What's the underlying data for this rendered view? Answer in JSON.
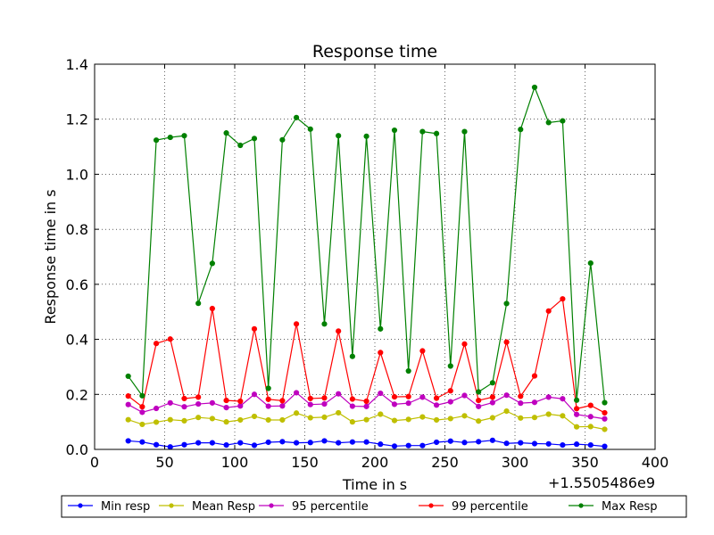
{
  "chart_data": {
    "type": "line",
    "title": "Response time",
    "xlabel": "Time in s",
    "ylabel": "Response time in s",
    "x_offset_label": "+1.5505486e9",
    "xlim": [
      0,
      400
    ],
    "ylim": [
      0,
      1.4
    ],
    "x_ticks": [
      "0",
      "50",
      "100",
      "150",
      "200",
      "250",
      "300",
      "350",
      "400"
    ],
    "y_ticks": [
      "0.0",
      "0.2",
      "0.4",
      "0.6",
      "0.8",
      "1.0",
      "1.2",
      "1.4"
    ],
    "x_tick_values": [
      0,
      50,
      100,
      150,
      200,
      250,
      300,
      350,
      400
    ],
    "y_tick_values": [
      0,
      0.2,
      0.4,
      0.6,
      0.8,
      1.0,
      1.2,
      1.4
    ],
    "grid": true,
    "legend_position": "bottom-outside",
    "x": [
      24,
      34,
      44,
      54,
      64,
      74,
      84,
      94,
      104,
      114,
      124,
      134,
      144,
      154,
      164,
      174,
      184,
      194,
      204,
      214,
      224,
      234,
      244,
      254,
      264,
      274,
      284,
      294,
      304,
      314,
      324,
      334,
      344,
      354,
      364
    ],
    "series": [
      {
        "name": "Min resp",
        "color": "#0000ff",
        "values": [
          0.031,
          0.027,
          0.017,
          0.009,
          0.017,
          0.024,
          0.024,
          0.016,
          0.024,
          0.015,
          0.026,
          0.028,
          0.024,
          0.025,
          0.031,
          0.024,
          0.027,
          0.027,
          0.019,
          0.012,
          0.014,
          0.014,
          0.026,
          0.03,
          0.025,
          0.028,
          0.033,
          0.022,
          0.024,
          0.021,
          0.02,
          0.016,
          0.019,
          0.016,
          0.011
        ]
      },
      {
        "name": "Mean Resp",
        "color": "#bfbf00",
        "values": [
          0.108,
          0.091,
          0.099,
          0.108,
          0.104,
          0.116,
          0.112,
          0.1,
          0.107,
          0.12,
          0.107,
          0.107,
          0.132,
          0.115,
          0.117,
          0.133,
          0.1,
          0.108,
          0.128,
          0.105,
          0.109,
          0.118,
          0.107,
          0.112,
          0.122,
          0.103,
          0.115,
          0.139,
          0.114,
          0.116,
          0.128,
          0.122,
          0.082,
          0.083,
          0.073
        ]
      },
      {
        "name": "95 percentile",
        "color": "#bf00bf",
        "values": [
          0.163,
          0.135,
          0.149,
          0.169,
          0.155,
          0.165,
          0.169,
          0.152,
          0.158,
          0.2,
          0.157,
          0.158,
          0.206,
          0.163,
          0.165,
          0.202,
          0.157,
          0.156,
          0.204,
          0.164,
          0.168,
          0.19,
          0.161,
          0.173,
          0.196,
          0.156,
          0.17,
          0.197,
          0.168,
          0.171,
          0.19,
          0.184,
          0.127,
          0.119,
          0.111
        ]
      },
      {
        "name": "99 percentile",
        "color": "#ff0000",
        "values": [
          0.194,
          0.155,
          0.385,
          0.401,
          0.185,
          0.19,
          0.512,
          0.178,
          0.175,
          0.438,
          0.182,
          0.177,
          0.456,
          0.185,
          0.187,
          0.43,
          0.183,
          0.175,
          0.352,
          0.191,
          0.192,
          0.358,
          0.186,
          0.213,
          0.383,
          0.178,
          0.19,
          0.39,
          0.193,
          0.267,
          0.503,
          0.547,
          0.148,
          0.16,
          0.133
        ]
      },
      {
        "name": "Max Resp",
        "color": "#008000",
        "values": [
          0.266,
          0.195,
          1.124,
          1.134,
          1.14,
          0.531,
          0.676,
          1.15,
          1.105,
          1.13,
          0.222,
          1.125,
          1.206,
          1.164,
          0.456,
          1.14,
          0.338,
          1.138,
          0.438,
          1.16,
          0.285,
          1.155,
          1.148,
          0.303,
          1.155,
          0.209,
          0.242,
          0.53,
          1.163,
          1.316,
          1.188,
          1.194,
          0.179,
          0.677,
          0.17
        ]
      }
    ]
  }
}
